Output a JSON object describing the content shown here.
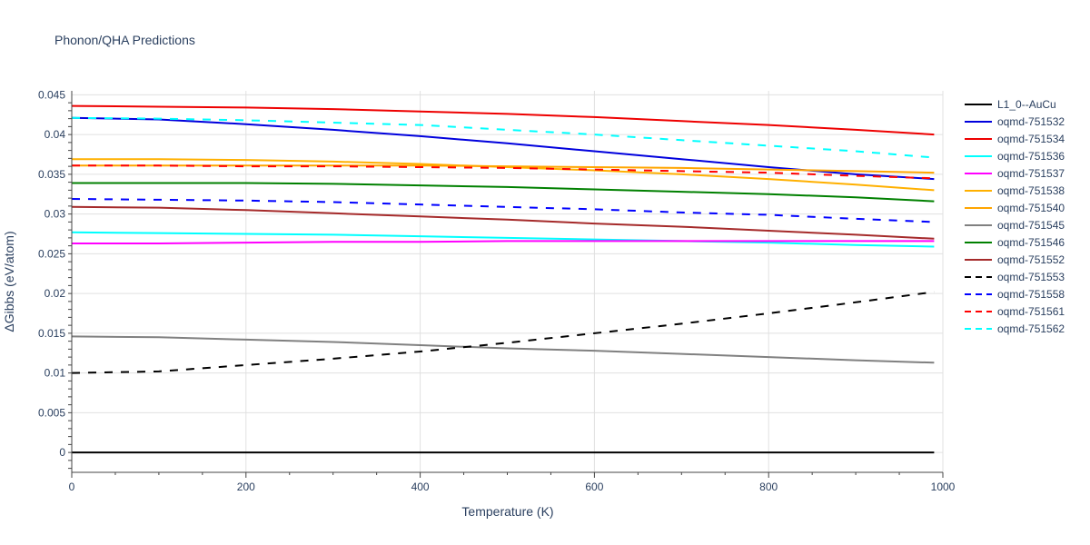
{
  "chart_data": {
    "type": "line",
    "title": "Phonon/QHA Predictions",
    "xlabel": "Temperature (K)",
    "ylabel": "ΔGibbs (eV/atom)",
    "xlim": [
      0,
      1000
    ],
    "ylim": [
      -0.0025,
      0.0455
    ],
    "xticks": [
      0,
      200,
      400,
      600,
      800,
      1000
    ],
    "yticks": [
      0,
      0.005,
      0.01,
      0.015,
      0.02,
      0.025,
      0.03,
      0.035,
      0.04,
      0.045
    ],
    "ytick_labels": [
      "0",
      "0.005",
      "0.01",
      "0.015",
      "0.02",
      "0.025",
      "0.03",
      "0.035",
      "0.04",
      "0.045"
    ],
    "grid": true,
    "legend_position": "right",
    "x": [
      0,
      100,
      200,
      300,
      400,
      500,
      600,
      700,
      800,
      900,
      990
    ],
    "series": [
      {
        "name": "L1_0--AuCu",
        "color": "#000000",
        "dash": "solid",
        "values": [
          0,
          0,
          0,
          0,
          0,
          0,
          0,
          0,
          0,
          0,
          0
        ]
      },
      {
        "name": "oqmd-751532",
        "color": "#0000dd",
        "dash": "solid",
        "values": [
          0.0421,
          0.0419,
          0.0413,
          0.0406,
          0.0398,
          0.0389,
          0.0379,
          0.0369,
          0.0359,
          0.035,
          0.0344
        ]
      },
      {
        "name": "oqmd-751534",
        "color": "#ee0000",
        "dash": "solid",
        "values": [
          0.0436,
          0.0435,
          0.0434,
          0.0432,
          0.0429,
          0.0426,
          0.0422,
          0.0417,
          0.0412,
          0.0406,
          0.04
        ]
      },
      {
        "name": "oqmd-751536",
        "color": "#00ffff",
        "dash": "solid",
        "values": [
          0.0277,
          0.0276,
          0.0275,
          0.0274,
          0.0272,
          0.027,
          0.0268,
          0.0266,
          0.0264,
          0.0261,
          0.0259
        ]
      },
      {
        "name": "oqmd-751537",
        "color": "#ff00ff",
        "dash": "solid",
        "values": [
          0.0263,
          0.0263,
          0.0264,
          0.0265,
          0.0265,
          0.0266,
          0.0266,
          0.0266,
          0.0266,
          0.0266,
          0.0266
        ]
      },
      {
        "name": "oqmd-751538",
        "color": "#ffb000",
        "dash": "solid",
        "values": [
          0.0369,
          0.0369,
          0.0368,
          0.0366,
          0.0363,
          0.0359,
          0.0355,
          0.035,
          0.0344,
          0.0337,
          0.033
        ]
      },
      {
        "name": "oqmd-751540",
        "color": "#ffa500",
        "dash": "solid",
        "values": [
          0.0361,
          0.0361,
          0.0361,
          0.0361,
          0.0361,
          0.036,
          0.0359,
          0.0358,
          0.0356,
          0.0354,
          0.0352
        ]
      },
      {
        "name": "oqmd-751545",
        "color": "#808080",
        "dash": "solid",
        "values": [
          0.0146,
          0.0145,
          0.0142,
          0.0139,
          0.0135,
          0.0131,
          0.0128,
          0.0124,
          0.012,
          0.0116,
          0.0113
        ]
      },
      {
        "name": "oqmd-751546",
        "color": "#008000",
        "dash": "solid",
        "values": [
          0.0339,
          0.0339,
          0.0339,
          0.0338,
          0.0336,
          0.0334,
          0.0331,
          0.0328,
          0.0325,
          0.0321,
          0.0316
        ]
      },
      {
        "name": "oqmd-751552",
        "color": "#a52a2a",
        "dash": "solid",
        "values": [
          0.0309,
          0.0308,
          0.0305,
          0.0301,
          0.0297,
          0.0293,
          0.0288,
          0.0284,
          0.0279,
          0.0274,
          0.0269
        ]
      },
      {
        "name": "oqmd-751553",
        "color": "#000000",
        "dash": "dash",
        "values": [
          0.01,
          0.0102,
          0.011,
          0.0118,
          0.0127,
          0.0138,
          0.015,
          0.0162,
          0.0175,
          0.0189,
          0.0202
        ]
      },
      {
        "name": "oqmd-751558",
        "color": "#0000ff",
        "dash": "dash",
        "values": [
          0.0319,
          0.0318,
          0.0317,
          0.0315,
          0.0312,
          0.0309,
          0.0306,
          0.0302,
          0.0299,
          0.0294,
          0.029
        ]
      },
      {
        "name": "oqmd-751561",
        "color": "#ff0000",
        "dash": "dash",
        "values": [
          0.0361,
          0.0361,
          0.036,
          0.036,
          0.0359,
          0.0358,
          0.0356,
          0.0354,
          0.0352,
          0.0348,
          0.0345
        ]
      },
      {
        "name": "oqmd-751562",
        "color": "#00ffff",
        "dash": "dash",
        "values": [
          0.0421,
          0.042,
          0.0418,
          0.0415,
          0.0412,
          0.0406,
          0.04,
          0.0393,
          0.0386,
          0.0379,
          0.0371
        ]
      }
    ]
  }
}
